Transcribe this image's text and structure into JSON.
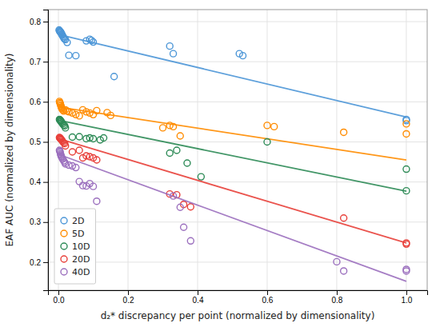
{
  "chart_data": {
    "type": "scatter",
    "xlabel": "d₂* discrepancy per point (normalized by dimensionality)",
    "ylabel": "EAF AUC (normalized by dimensionality)",
    "xlim": [
      -0.03,
      1.06
    ],
    "ylim": [
      0.13,
      0.83
    ],
    "xticks": [
      {
        "value": 0.0,
        "label": "0.0"
      },
      0.2,
      0.4,
      0.6,
      0.8,
      {
        "value": 1.0,
        "label": "1.0"
      }
    ],
    "yticks": [
      0.2,
      0.3,
      0.4,
      0.5,
      0.6,
      0.7,
      0.8
    ],
    "grid": true,
    "legend": "lower left",
    "series": [
      {
        "name": "2D",
        "color": "#4C96D7",
        "x": [
          0.002,
          0.003,
          0.004,
          0.005,
          0.006,
          0.007,
          0.008,
          0.009,
          0.01,
          0.011,
          0.013,
          0.015,
          0.017,
          0.02,
          0.025,
          0.03,
          0.05,
          0.08,
          0.09,
          0.095,
          0.1,
          0.16,
          0.32,
          0.33,
          0.52,
          0.53,
          1.0,
          1.0
        ],
        "values": [
          0.779,
          0.777,
          0.776,
          0.775,
          0.774,
          0.773,
          0.771,
          0.769,
          0.768,
          0.766,
          0.763,
          0.76,
          0.757,
          0.755,
          0.748,
          0.716,
          0.715,
          0.752,
          0.756,
          0.753,
          0.749,
          0.663,
          0.739,
          0.72,
          0.72,
          0.715,
          0.556,
          0.553
        ],
        "trend_x": [
          0.0,
          1.0
        ],
        "trend_y": [
          0.768,
          0.562
        ]
      },
      {
        "name": "5D",
        "color": "#FF8C00",
        "x": [
          0.003,
          0.004,
          0.005,
          0.006,
          0.007,
          0.008,
          0.009,
          0.01,
          0.012,
          0.015,
          0.02,
          0.025,
          0.03,
          0.04,
          0.05,
          0.06,
          0.07,
          0.08,
          0.09,
          0.1,
          0.11,
          0.14,
          0.15,
          0.3,
          0.32,
          0.33,
          0.35,
          0.6,
          0.62,
          0.82,
          1.0,
          1.0
        ],
        "values": [
          0.601,
          0.598,
          0.596,
          0.593,
          0.59,
          0.587,
          0.585,
          0.583,
          0.58,
          0.577,
          0.58,
          0.577,
          0.575,
          0.572,
          0.568,
          0.565,
          0.58,
          0.575,
          0.572,
          0.568,
          0.578,
          0.573,
          0.566,
          0.535,
          0.541,
          0.538,
          0.515,
          0.541,
          0.538,
          0.524,
          0.52,
          0.545
        ],
        "trend_x": [
          0.0,
          1.0
        ],
        "trend_y": [
          0.587,
          0.455
        ]
      },
      {
        "name": "10D",
        "color": "#2E8B57",
        "x": [
          0.003,
          0.004,
          0.005,
          0.006,
          0.007,
          0.008,
          0.01,
          0.012,
          0.015,
          0.018,
          0.02,
          0.04,
          0.06,
          0.08,
          0.09,
          0.1,
          0.12,
          0.13,
          0.32,
          0.34,
          0.37,
          0.41,
          0.6,
          1.0,
          1.0
        ],
        "values": [
          0.556,
          0.555,
          0.554,
          0.553,
          0.552,
          0.55,
          0.548,
          0.545,
          0.542,
          0.54,
          0.535,
          0.512,
          0.513,
          0.508,
          0.51,
          0.508,
          0.505,
          0.51,
          0.472,
          0.479,
          0.447,
          0.413,
          0.5,
          0.432,
          0.378
        ],
        "trend_x": [
          0.0,
          1.0
        ],
        "trend_y": [
          0.554,
          0.377
        ]
      },
      {
        "name": "20D",
        "color": "#E8403A",
        "x": [
          0.003,
          0.004,
          0.005,
          0.006,
          0.007,
          0.008,
          0.01,
          0.012,
          0.015,
          0.018,
          0.02,
          0.04,
          0.06,
          0.07,
          0.08,
          0.09,
          0.1,
          0.11,
          0.32,
          0.34,
          0.36,
          0.38,
          0.82,
          1.0,
          1.0
        ],
        "values": [
          0.511,
          0.51,
          0.509,
          0.508,
          0.507,
          0.506,
          0.504,
          0.501,
          0.498,
          0.496,
          0.49,
          0.475,
          0.479,
          0.46,
          0.465,
          0.463,
          0.46,
          0.455,
          0.37,
          0.368,
          0.344,
          0.338,
          0.31,
          0.248,
          0.245
        ],
        "trend_x": [
          0.0,
          1.0
        ],
        "trend_y": [
          0.508,
          0.248
        ]
      },
      {
        "name": "40D",
        "color": "#9B6FBE",
        "x": [
          0.003,
          0.004,
          0.005,
          0.006,
          0.007,
          0.008,
          0.01,
          0.012,
          0.015,
          0.018,
          0.02,
          0.03,
          0.04,
          0.05,
          0.06,
          0.07,
          0.08,
          0.09,
          0.1,
          0.11,
          0.33,
          0.35,
          0.36,
          0.38,
          0.8,
          0.82,
          1.0,
          1.0
        ],
        "values": [
          0.479,
          0.477,
          0.474,
          0.47,
          0.467,
          0.464,
          0.461,
          0.457,
          0.453,
          0.449,
          0.445,
          0.442,
          0.44,
          0.436,
          0.401,
          0.391,
          0.39,
          0.396,
          0.389,
          0.352,
          0.365,
          0.337,
          0.287,
          0.253,
          0.201,
          0.178,
          0.178,
          0.182
        ],
        "trend_x": [
          0.0,
          1.0
        ],
        "trend_y": [
          0.469,
          0.152
        ]
      }
    ]
  }
}
